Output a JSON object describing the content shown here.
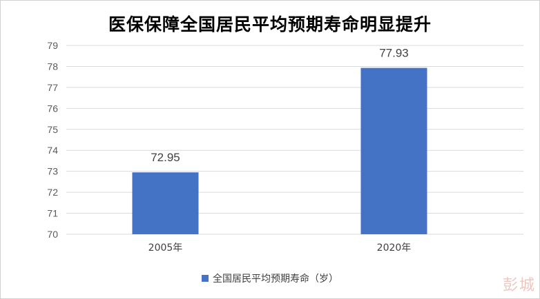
{
  "chart_data": {
    "type": "bar",
    "title": "医保保障全国居民平均预期寿命明显提升",
    "categories": [
      "2005年",
      "2020年"
    ],
    "series": [
      {
        "name": "全国居民平均预期寿命（岁）",
        "values": [
          72.95,
          77.93
        ]
      }
    ],
    "data_labels": [
      "72.95",
      "77.93"
    ],
    "ylim": [
      70,
      79
    ],
    "y_ticks": [
      "70",
      "71",
      "72",
      "73",
      "74",
      "75",
      "76",
      "77",
      "78",
      "79"
    ],
    "grid": true,
    "legend_position": "bottom",
    "bar_color": "#4472C4",
    "grid_color": "#d9d9d9"
  },
  "watermark": "彭城"
}
